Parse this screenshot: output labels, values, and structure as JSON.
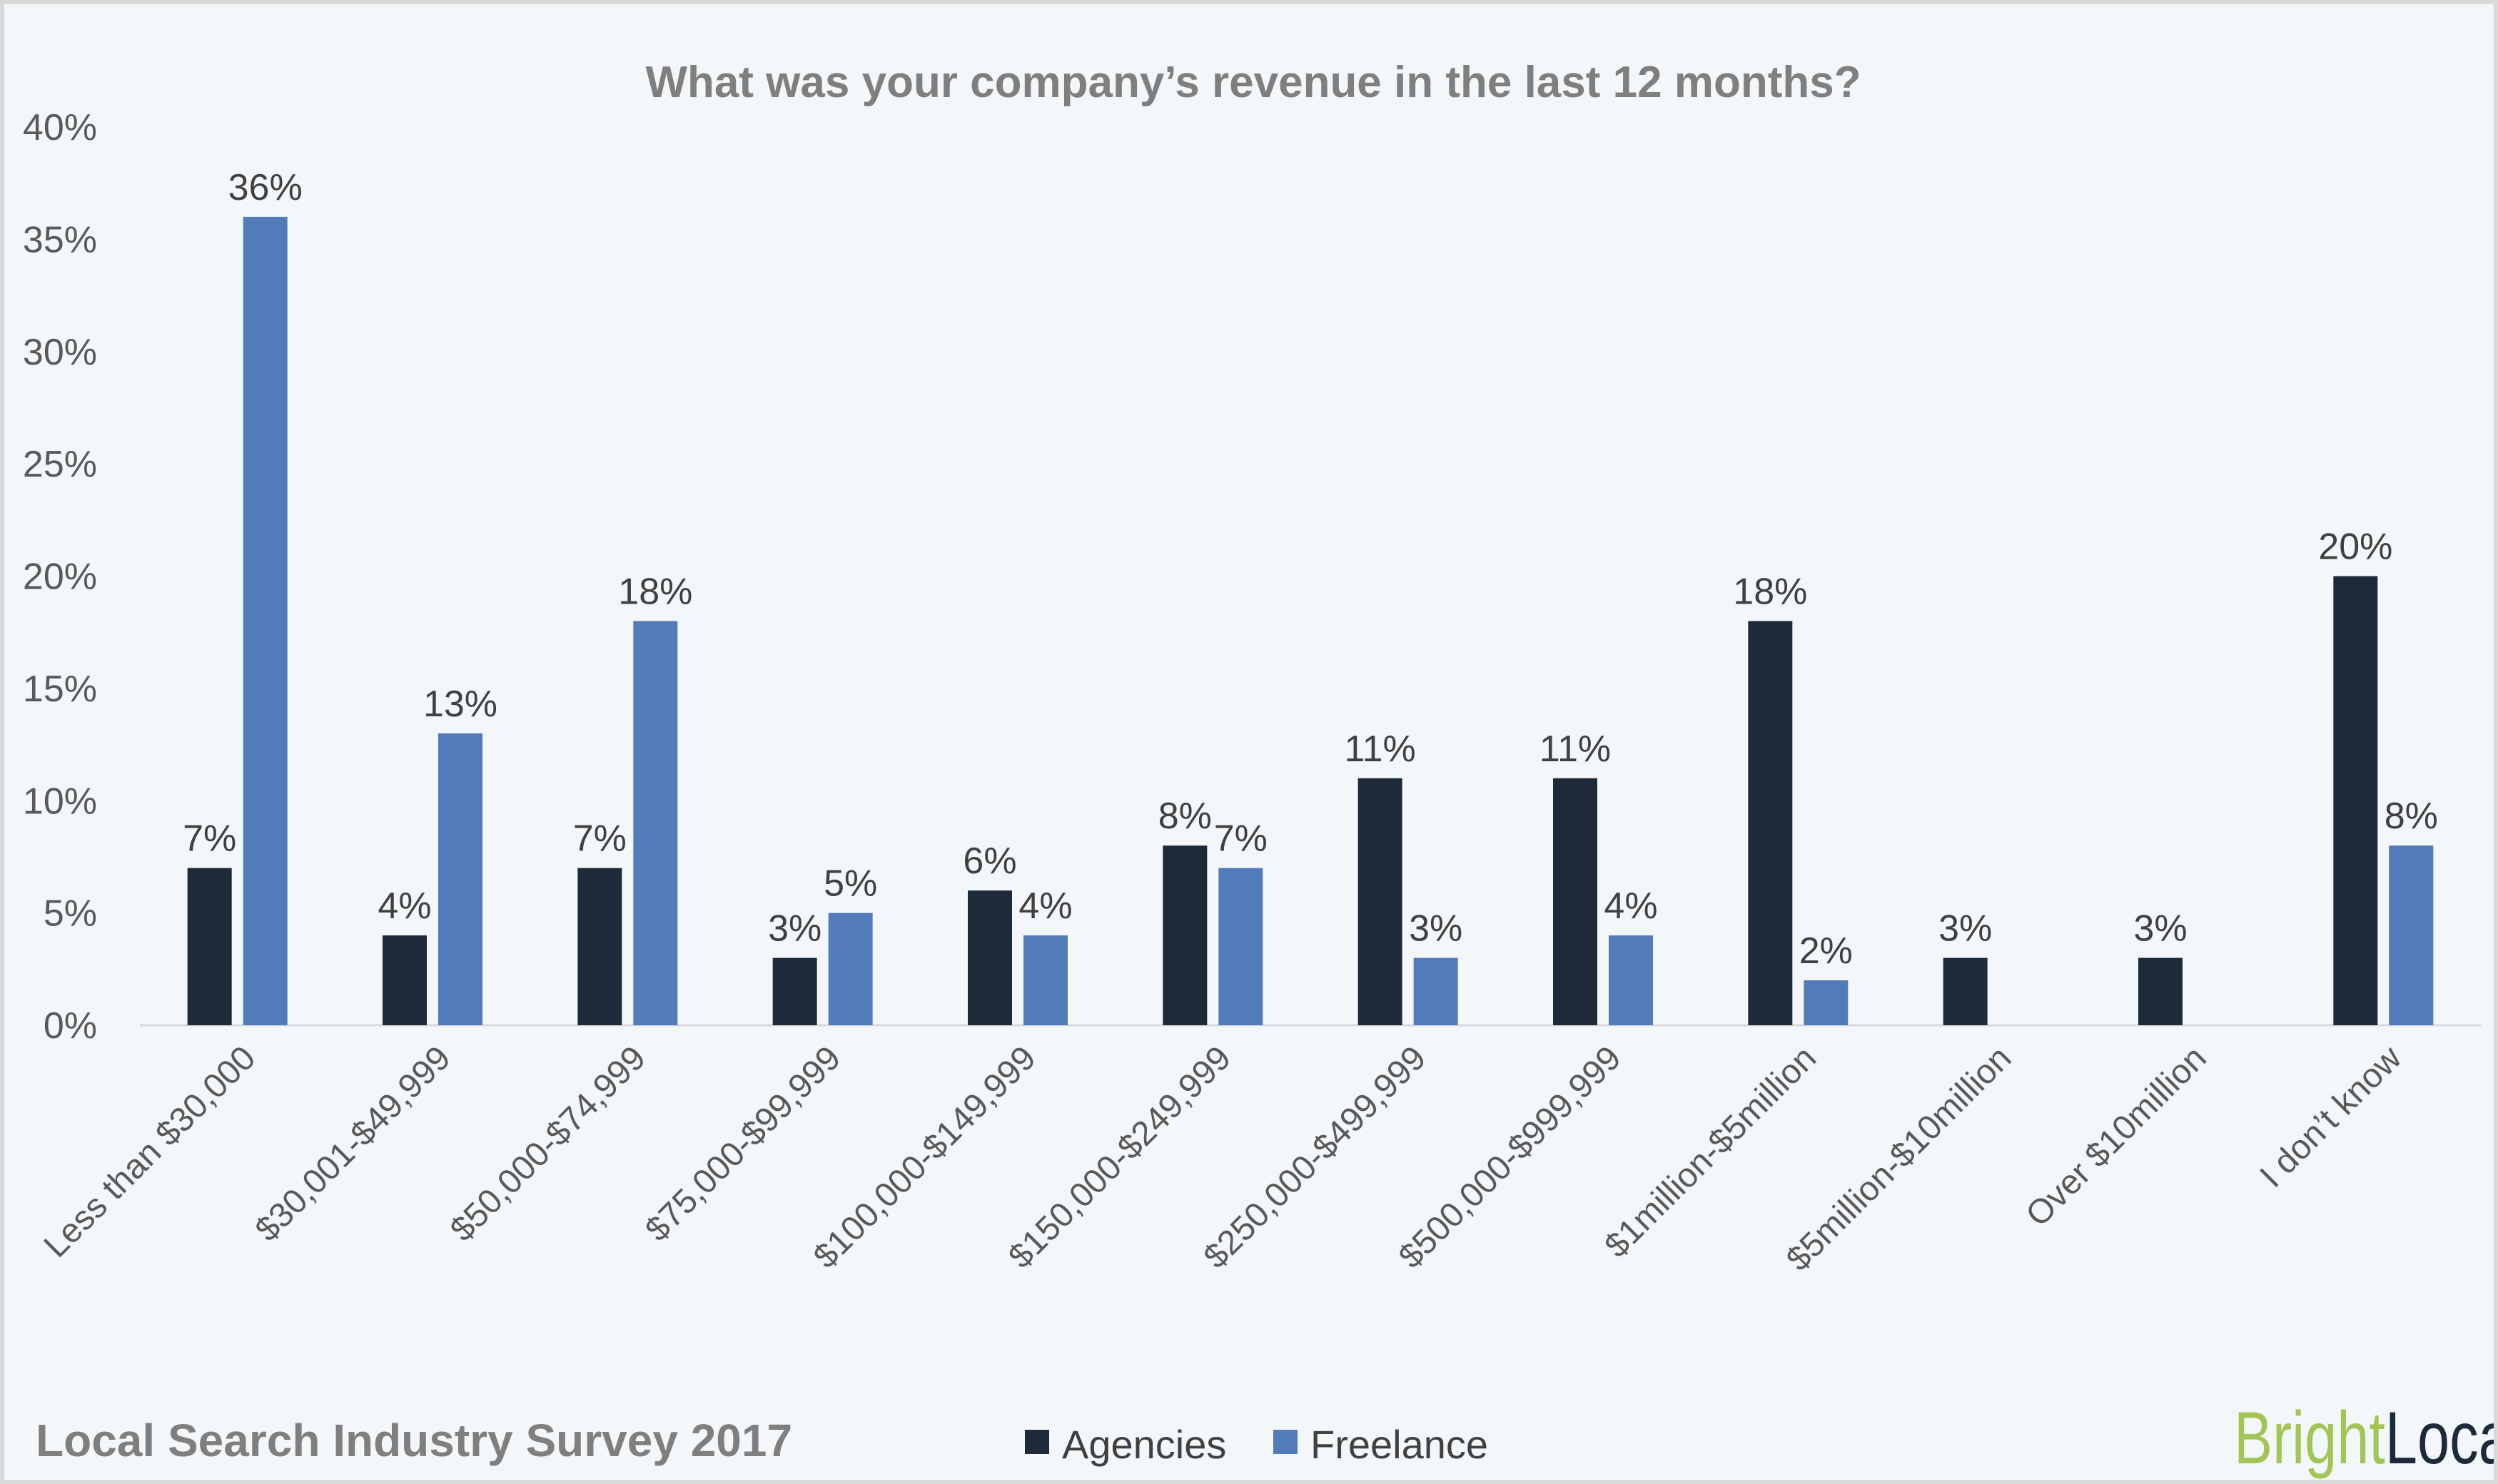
{
  "chart_data": {
    "type": "bar",
    "title": "What was your company’s revenue in the last 12 months?",
    "categories": [
      "Less than $30,000",
      "$30,001-$49,999",
      "$50,000-$74,999",
      "$75,000-$99,999",
      "$100,000-$149,999",
      "$150,000-$249,999",
      "$250,000-$499,999",
      "$500,000-$999,999",
      "$1million-$5million",
      "$5million-$10million",
      "Over $10million",
      "I don’t know"
    ],
    "series": [
      {
        "name": "Agencies",
        "color": "#1e2a3a",
        "values": [
          7,
          4,
          7,
          3,
          6,
          8,
          11,
          11,
          18,
          3,
          3,
          20
        ]
      },
      {
        "name": "Freelance",
        "color": "#527bba",
        "values": [
          36,
          13,
          18,
          5,
          4,
          7,
          3,
          4,
          2,
          null,
          null,
          8
        ]
      }
    ],
    "ylim": [
      0,
      40
    ],
    "yticks": [
      "0%",
      "5%",
      "10%",
      "15%",
      "20%",
      "25%",
      "30%",
      "35%",
      "40%"
    ],
    "value_suffix": "%",
    "xlabel": "",
    "ylabel": "",
    "grid": false,
    "legend": "bottom-center"
  },
  "footer": {
    "survey": "Local Search Industry Survey 2017"
  },
  "logo": {
    "text": "BrightLocal",
    "part1": "Bright",
    "part2": "Local",
    "color1": "#a3c556",
    "color2": "#1e2a3a"
  }
}
